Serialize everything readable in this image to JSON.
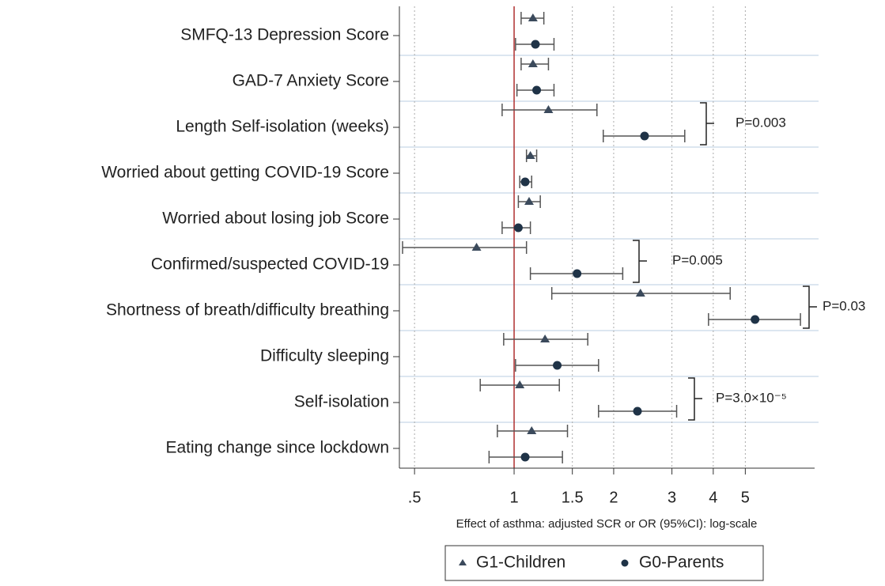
{
  "chart_data": {
    "type": "forest",
    "x_label": "Effect of asthma: adjusted SCR or OR (95%CI): log-scale",
    "categories": [
      "SMFQ-13 Depression Score",
      "GAD-7 Anxiety Score",
      "Length Self-isolation (weeks)",
      "Worried about getting COVID-19 Score",
      "Worried about losing job Score",
      "Confirmed/suspected COVID-19",
      "Shortness of breath/difficulty breathing",
      "Difficulty sleeping",
      "Self-isolation",
      "Eating change since lockdown"
    ],
    "series": [
      {
        "name": "G1-Children",
        "marker": "triangle",
        "color": "#3b4a5c",
        "values": [
          1.14,
          1.14,
          1.27,
          1.12,
          1.11,
          0.77,
          2.41,
          1.24,
          1.04,
          1.13
        ],
        "lower": [
          1.05,
          1.05,
          0.92,
          1.09,
          1.03,
          0.46,
          1.3,
          0.93,
          0.79,
          0.89
        ],
        "upper": [
          1.23,
          1.27,
          1.78,
          1.17,
          1.2,
          1.09,
          4.5,
          1.67,
          1.37,
          1.45
        ]
      },
      {
        "name": "G0-Parents",
        "marker": "circle",
        "color": "#1f3347",
        "values": [
          1.16,
          1.17,
          2.48,
          1.08,
          1.03,
          1.55,
          5.35,
          1.35,
          2.36,
          1.08
        ],
        "lower": [
          1.01,
          1.02,
          1.86,
          1.04,
          0.92,
          1.12,
          3.87,
          1.01,
          1.8,
          0.84
        ],
        "upper": [
          1.32,
          1.32,
          3.28,
          1.13,
          1.12,
          2.13,
          7.34,
          1.8,
          3.1,
          1.4
        ]
      }
    ],
    "x_scale": "log",
    "xlim": [
      0.45,
      8.1
    ],
    "xticks": [
      {
        "value": 0.5,
        "label": ".5"
      },
      1,
      1.5,
      2,
      3,
      4,
      5
    ],
    "reference_line": 1,
    "reference_color": "#b03030",
    "grid": true,
    "legend": "bottom",
    "annotations": [
      "P=0.003",
      "P=0.005",
      "P=0.03",
      "P=3.0×10⁻⁵"
    ]
  }
}
